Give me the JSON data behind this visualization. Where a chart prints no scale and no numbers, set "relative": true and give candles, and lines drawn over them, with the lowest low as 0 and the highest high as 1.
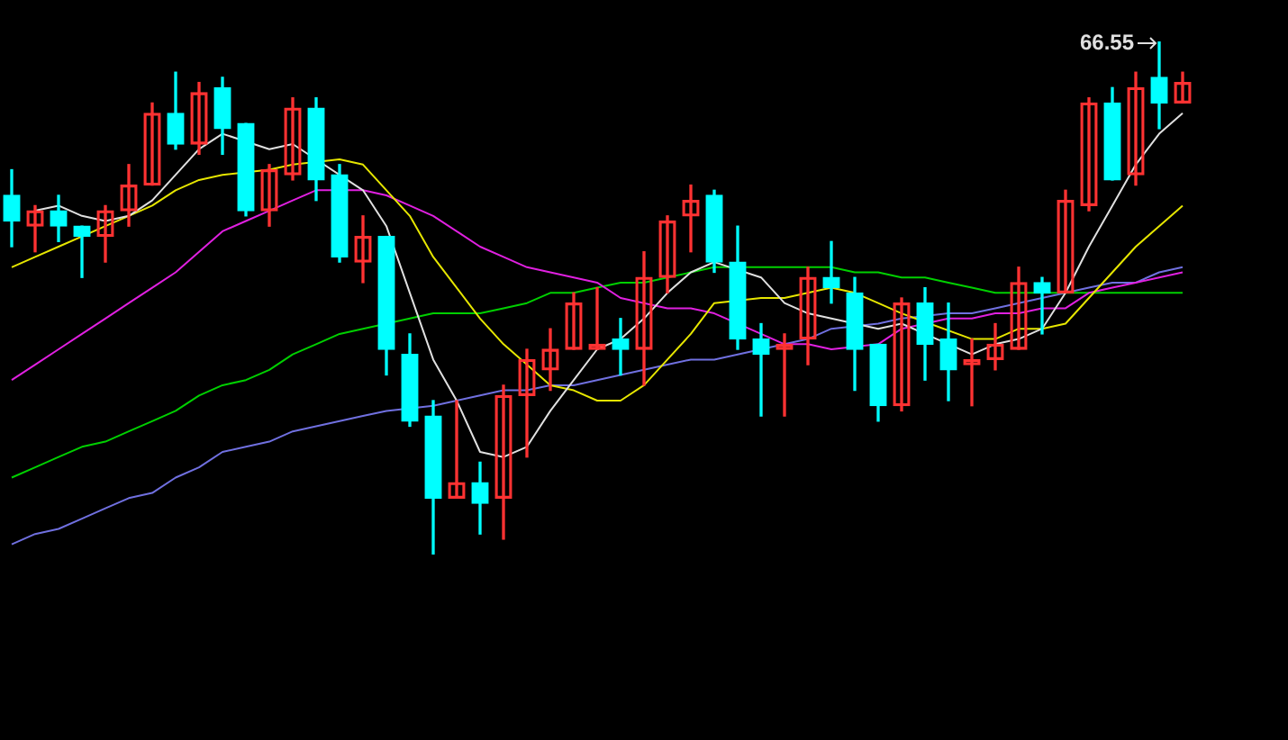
{
  "chart_data": {
    "type": "candlestick",
    "relative": true,
    "categories": [
      null,
      null,
      null,
      null,
      null,
      null,
      null,
      null,
      null,
      null,
      null,
      null,
      null,
      null,
      null,
      null,
      null,
      null,
      null,
      null,
      null,
      null,
      null,
      null,
      null,
      null,
      null,
      null,
      null,
      null,
      null,
      null,
      null,
      null,
      null,
      null,
      null,
      null,
      null,
      null,
      null,
      null,
      null,
      null,
      null,
      null,
      null,
      null,
      null,
      null,
      null
    ],
    "ohlc": [
      [
        0.7,
        0.75,
        0.6,
        0.65
      ],
      [
        0.64,
        0.68,
        0.59,
        0.67
      ],
      [
        0.67,
        0.7,
        0.61,
        0.64
      ],
      [
        0.64,
        0.64,
        0.54,
        0.62
      ],
      [
        0.62,
        0.68,
        0.57,
        0.67
      ],
      [
        0.67,
        0.76,
        0.64,
        0.72
      ],
      [
        0.72,
        0.88,
        0.72,
        0.86
      ],
      [
        0.86,
        0.94,
        0.79,
        0.8
      ],
      [
        0.8,
        0.92,
        0.78,
        0.9
      ],
      [
        0.91,
        0.93,
        0.78,
        0.83
      ],
      [
        0.84,
        0.84,
        0.66,
        0.67
      ],
      [
        0.67,
        0.76,
        0.64,
        0.75
      ],
      [
        0.74,
        0.89,
        0.73,
        0.87
      ],
      [
        0.87,
        0.89,
        0.69,
        0.73
      ],
      [
        0.74,
        0.76,
        0.57,
        0.58
      ],
      [
        0.57,
        0.66,
        0.53,
        0.62
      ],
      [
        0.62,
        0.62,
        0.35,
        0.4
      ],
      [
        0.39,
        0.43,
        0.25,
        0.26
      ],
      [
        0.27,
        0.3,
        0,
        0.11
      ],
      [
        0.11,
        0.3,
        0.11,
        0.14
      ],
      [
        0.14,
        0.18,
        0.04,
        0.1
      ],
      [
        0.11,
        0.33,
        0.03,
        0.31
      ],
      [
        0.31,
        0.4,
        0.19,
        0.38
      ],
      [
        0.36,
        0.44,
        0.32,
        0.4
      ],
      [
        0.4,
        0.51,
        0.4,
        0.49
      ],
      [
        0.4,
        0.52,
        0.4,
        0.41
      ],
      [
        0.42,
        0.46,
        0.35,
        0.4
      ],
      [
        0.4,
        0.59,
        0.33,
        0.54
      ],
      [
        0.54,
        0.66,
        0.51,
        0.65
      ],
      [
        0.66,
        0.72,
        0.59,
        0.69
      ],
      [
        0.7,
        0.71,
        0.55,
        0.57
      ],
      [
        0.57,
        0.64,
        0.4,
        0.42
      ],
      [
        0.42,
        0.45,
        0.27,
        0.39
      ],
      [
        0.4,
        0.43,
        0.27,
        0.41
      ],
      [
        0.42,
        0.56,
        0.37,
        0.54
      ],
      [
        0.54,
        0.61,
        0.49,
        0.52
      ],
      [
        0.51,
        0.54,
        0.32,
        0.4
      ],
      [
        0.41,
        0.41,
        0.26,
        0.29
      ],
      [
        0.29,
        0.5,
        0.28,
        0.49
      ],
      [
        0.49,
        0.52,
        0.34,
        0.41
      ],
      [
        0.42,
        0.49,
        0.3,
        0.36
      ],
      [
        0.37,
        0.42,
        0.29,
        0.38
      ],
      [
        0.38,
        0.45,
        0.36,
        0.41
      ],
      [
        0.4,
        0.56,
        0.4,
        0.53
      ],
      [
        0.53,
        0.54,
        0.43,
        0.51
      ],
      [
        0.51,
        0.71,
        0.51,
        0.69
      ],
      [
        0.68,
        0.89,
        0.67,
        0.88
      ],
      [
        0.88,
        0.91,
        0.73,
        0.73
      ],
      [
        0.74,
        0.94,
        0.72,
        0.91
      ],
      [
        0.93,
        1,
        0.83,
        0.88
      ],
      [
        0.88,
        0.94,
        0.88,
        0.92
      ]
    ],
    "colors": [
      "#00ffff",
      "#ff3232",
      "#00ffff",
      "#00ffff",
      "#ff3232",
      "#ff3232",
      "#ff3232",
      "#00ffff",
      "#ff3232",
      "#00ffff",
      "#00ffff",
      "#ff3232",
      "#ff3232",
      "#00ffff",
      "#00ffff",
      "#ff3232",
      "#00ffff",
      "#00ffff",
      "#00ffff",
      "#ff3232",
      "#00ffff",
      "#ff3232",
      "#ff3232",
      "#ff3232",
      "#ff3232",
      "#ff3232",
      "#00ffff",
      "#ff3232",
      "#ff3232",
      "#ff3232",
      "#00ffff",
      "#00ffff",
      "#00ffff",
      "#ff3232",
      "#ff3232",
      "#00ffff",
      "#00ffff",
      "#00ffff",
      "#ff3232",
      "#00ffff",
      "#00ffff",
      "#ff3232",
      "#ff3232",
      "#ff3232",
      "#00ffff",
      "#ff3232",
      "#ff3232",
      "#00ffff",
      "#ff3232",
      "#00ffff",
      "#ff3232"
    ],
    "series": [
      {
        "type": "line",
        "color": "#e0e0e0",
        "values": [
          null,
          0.67,
          0.68,
          0.66,
          0.65,
          0.66,
          0.69,
          0.74,
          0.79,
          0.82,
          null,
          0.79,
          0.8,
          null,
          null,
          0.71,
          0.64,
          0.51,
          0.38,
          0.3,
          0.2,
          0.19,
          0.21,
          0.28,
          0.34,
          0.4,
          0.42,
          0.46,
          0.51,
          0.55,
          0.57,
          null,
          0.54,
          0.49,
          0.47,
          0.46,
          null,
          0.44,
          0.45,
          null,
          null,
          0.39,
          0.41,
          0.42,
          0.44,
          0.51,
          0.6,
          0.68,
          0.76,
          0.82,
          0.86
        ]
      },
      {
        "type": "line",
        "color": "#e6e600",
        "values": [
          0.56,
          0.58,
          0.6,
          0.62,
          0.64,
          0.66,
          0.68,
          0.71,
          0.73,
          0.74,
          null,
          0.75,
          0.76,
          null,
          0.77,
          0.76,
          0.71,
          0.66,
          0.58,
          0.52,
          0.46,
          0.41,
          0.37,
          0.33,
          0.32,
          0.3,
          0.3,
          0.33,
          0.38,
          0.43,
          0.49,
          null,
          0.5,
          0.5,
          0.51,
          0.52,
          0.51,
          0.49,
          0.47,
          null,
          null,
          0.42,
          0.42,
          0.44,
          0.44,
          0.45,
          0.5,
          0.55,
          0.6,
          0.64,
          0.68
        ]
      },
      {
        "type": "line",
        "color": "#e020e0",
        "values": [
          0.34,
          0.37,
          0.4,
          0.43,
          0.46,
          0.49,
          0.52,
          0.55,
          0.59,
          0.63,
          0.65,
          0.67,
          0.69,
          0.71,
          null,
          0.71,
          0.7,
          0.68,
          0.66,
          0.63,
          0.6,
          0.58,
          0.56,
          0.55,
          0.54,
          0.53,
          0.5,
          0.49,
          0.48,
          0.48,
          0.47,
          null,
          0.43,
          0.41,
          0.41,
          0.4,
          null,
          0.41,
          0.44,
          null,
          0.46,
          0.46,
          0.47,
          0.47,
          0.48,
          0.48,
          0.51,
          0.52,
          0.53,
          0.54,
          0.55
        ]
      },
      {
        "type": "line",
        "color": "#00d000",
        "values": [
          0.15,
          0.17,
          0.19,
          0.21,
          0.22,
          0.24,
          0.26,
          0.28,
          0.31,
          0.33,
          0.34,
          0.36,
          0.39,
          0.41,
          0.43,
          0.44,
          null,
          0.46,
          0.47,
          0.47,
          0.47,
          0.48,
          0.49,
          0.51,
          0.51,
          0.52,
          0.53,
          0.53,
          0.54,
          0.55,
          0.56,
          null,
          0.56,
          0.56,
          0.56,
          0.56,
          0.55,
          0.55,
          0.54,
          0.54,
          0.53,
          0.52,
          0.51,
          0.51,
          null,
          null,
          0.51,
          0.51,
          0.51,
          0.51,
          0.51
        ]
      },
      {
        "type": "line",
        "color": "#7070e0",
        "values": [
          0.02,
          0.04,
          0.05,
          0.07,
          0.09,
          0.11,
          0.12,
          0.15,
          0.17,
          0.2,
          0.21,
          0.22,
          0.24,
          0.25,
          0.26,
          0.27,
          0.28,
          null,
          0.29,
          0.3,
          0.31,
          0.32,
          0.32,
          0.33,
          0.33,
          0.34,
          0.35,
          0.36,
          0.37,
          0.38,
          0.38,
          0.39,
          null,
          0.41,
          0.42,
          0.44,
          null,
          0.45,
          0.46,
          null,
          0.47,
          0.47,
          0.48,
          0.49,
          0.5,
          0.51,
          0.52,
          0.53,
          0.53,
          0.55,
          0.56
        ]
      }
    ],
    "annotations": [
      "66.55"
    ]
  }
}
